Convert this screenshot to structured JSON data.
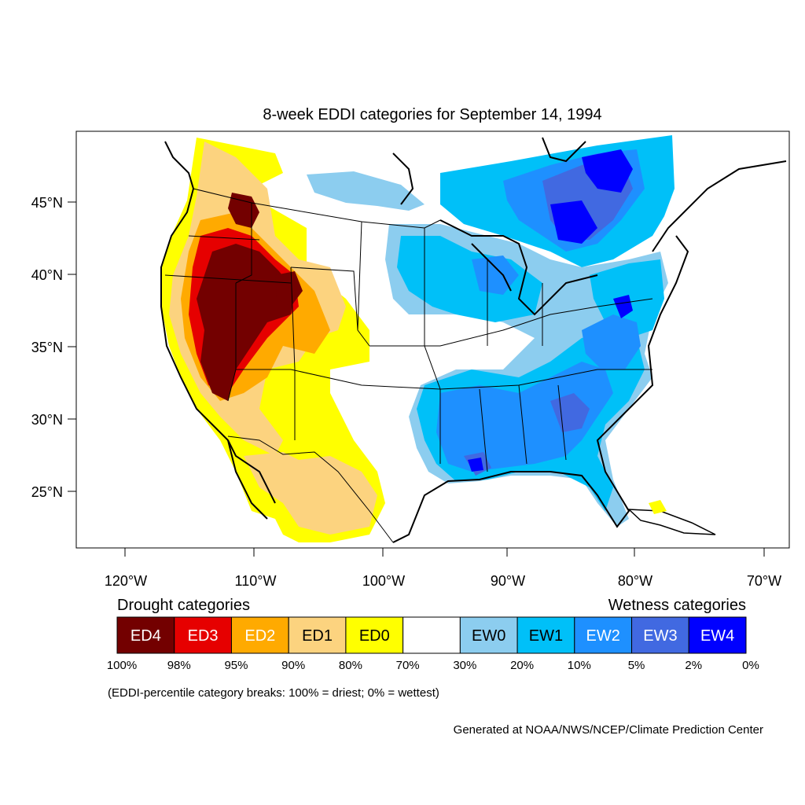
{
  "title": "8-week EDDI categories for September 14, 1994",
  "lat_labels": [
    "45°N",
    "40°N",
    "35°N",
    "30°N",
    "25°N"
  ],
  "lon_labels": [
    "120°W",
    "110°W",
    "100°W",
    "90°W",
    "80°W",
    "70°W"
  ],
  "legend": {
    "drought_heading": "Drought categories",
    "wetness_heading": "Wetness categories",
    "categories": [
      {
        "label": "ED4",
        "color": "#730000",
        "text_color": "#ffffff"
      },
      {
        "label": "ED3",
        "color": "#e60000",
        "text_color": "#ffffff"
      },
      {
        "label": "ED2",
        "color": "#ffaa00",
        "text_color": "#ffffff"
      },
      {
        "label": "ED1",
        "color": "#fcd37f",
        "text_color": "#000000"
      },
      {
        "label": "ED0",
        "color": "#ffff00",
        "text_color": "#000000"
      },
      {
        "label": "",
        "color": "#ffffff",
        "text_color": "#000000"
      },
      {
        "label": "EW0",
        "color": "#8ccdef",
        "text_color": "#000000"
      },
      {
        "label": "EW1",
        "color": "#00c0f8",
        "text_color": "#000000"
      },
      {
        "label": "EW2",
        "color": "#1e90ff",
        "text_color": "#ffffff"
      },
      {
        "label": "EW3",
        "color": "#4169e1",
        "text_color": "#ffffff"
      },
      {
        "label": "EW4",
        "color": "#0000ff",
        "text_color": "#ffffff"
      }
    ],
    "breaks": [
      "100%",
      "98%",
      "95%",
      "90%",
      "80%",
      "70%",
      "30%",
      "20%",
      "10%",
      "5%",
      "2%",
      "0%"
    ],
    "note": "(EDDI-percentile category breaks: 100% = driest; 0% = wettest)"
  },
  "credit": "Generated at NOAA/NWS/NCEP/Climate Prediction Center"
}
